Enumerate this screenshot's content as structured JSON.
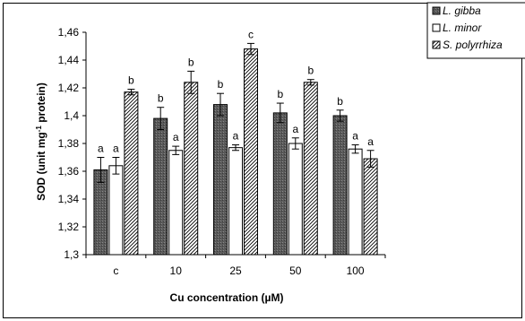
{
  "chart_data": {
    "type": "bar",
    "xlabel": "Cu concentration (µM)",
    "ylabel_main": "SOD (unit mg",
    "ylabel_sup": "-1",
    "ylabel_tail": " protein)",
    "categories": [
      "c",
      "10",
      "25",
      "50",
      "100"
    ],
    "ylim": [
      1.3,
      1.46
    ],
    "yticks": [
      "1,3",
      "1,32",
      "1,34",
      "1,36",
      "1,38",
      "1,4",
      "1,42",
      "1,44",
      "1,46"
    ],
    "ytick_values": [
      1.3,
      1.32,
      1.34,
      1.36,
      1.38,
      1.4,
      1.42,
      1.44,
      1.46
    ],
    "grid": false,
    "legend_position": "top-right",
    "series": [
      {
        "name": "L. gibba",
        "pattern": "dark-grey",
        "values": [
          1.361,
          1.398,
          1.408,
          1.402,
          1.4
        ],
        "errors": [
          0.009,
          0.008,
          0.008,
          0.007,
          0.004
        ],
        "letters": [
          "a",
          "b",
          "b",
          "b",
          "b"
        ]
      },
      {
        "name": "L. minor",
        "pattern": "white",
        "values": [
          1.364,
          1.375,
          1.377,
          1.38,
          1.376
        ],
        "errors": [
          0.006,
          0.003,
          0.002,
          0.004,
          0.003
        ],
        "letters": [
          "a",
          "a",
          "a",
          "a",
          "a"
        ]
      },
      {
        "name": "S. polyrrhiza",
        "pattern": "hatched",
        "values": [
          1.417,
          1.424,
          1.448,
          1.424,
          1.369
        ],
        "errors": [
          0.002,
          0.008,
          0.004,
          0.002,
          0.006
        ],
        "letters": [
          "b",
          "b",
          "c",
          "b",
          "a"
        ]
      }
    ]
  }
}
